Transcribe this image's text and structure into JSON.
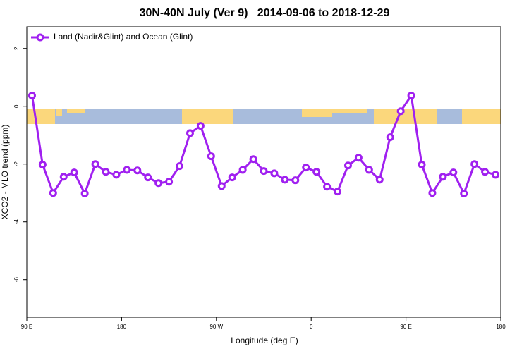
{
  "chart_data": {
    "type": "line",
    "title": "30N-40N July (Ver 9)   2014-09-06 to 2018-12-29",
    "x_label": "Longitude (deg E)",
    "y_label": "XCO2 - MLO trend (ppm)",
    "x": [
      95,
      105,
      115,
      125,
      135,
      145,
      155,
      165,
      175,
      185,
      195,
      205,
      215,
      225,
      235,
      245,
      255,
      265,
      275,
      285,
      295,
      305,
      315,
      325,
      335,
      345,
      355,
      365,
      375,
      385,
      395,
      405,
      415,
      425,
      435,
      445,
      455,
      465,
      475,
      485,
      495,
      505,
      515,
      525,
      535
    ],
    "series": [
      {
        "name": "Land (Nadir&Glint) and Ocean (Glint)",
        "color": "#a020f0",
        "values": [
          0.37,
          -2.02,
          -3.0,
          -2.44,
          -2.29,
          -3.02,
          -2.0,
          -2.27,
          -2.37,
          -2.2,
          -2.22,
          -2.46,
          -2.66,
          -2.61,
          -2.07,
          -0.93,
          -0.68,
          -1.73,
          -2.76,
          -2.46,
          -2.2,
          -1.83,
          -2.24,
          -2.32,
          -2.54,
          -2.56,
          -2.12,
          -2.27,
          -2.78,
          -2.95,
          -2.05,
          -1.78,
          -2.2,
          -2.54,
          -1.07,
          -0.17,
          0.37,
          -2.02,
          -3.0,
          -2.44,
          -2.29,
          -3.02,
          -2.0,
          -2.27,
          -2.37
        ]
      }
    ],
    "xlim": [
      90,
      540
    ],
    "xticks": [
      {
        "value": 90,
        "label": "90 E"
      },
      180,
      {
        "value": 270,
        "label": "90 W"
      },
      {
        "value": 360,
        "label": "0"
      },
      {
        "value": 450,
        "label": "90 E"
      },
      {
        "value": 540,
        "label": "180"
      }
    ],
    "ylim": [
      -7.3,
      2.75
    ],
    "yticks": [
      2,
      0,
      -2,
      -4,
      -6
    ],
    "legend": "top-left"
  }
}
